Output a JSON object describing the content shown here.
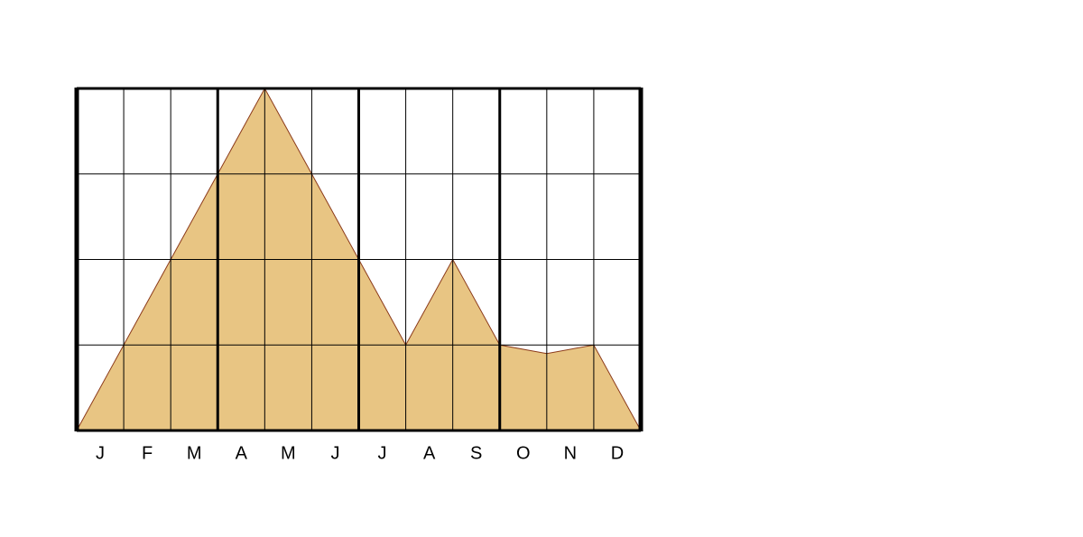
{
  "chart_data": {
    "type": "area",
    "categories": [
      "J",
      "F",
      "M",
      "A",
      "M",
      "J",
      "J",
      "A",
      "S",
      "O",
      "N",
      "D"
    ],
    "x": [
      0,
      1,
      2,
      3,
      4,
      5,
      6,
      7,
      8,
      9,
      10,
      11,
      12
    ],
    "values": [
      0,
      1,
      2,
      3,
      4,
      3,
      2,
      1,
      2,
      1,
      0.9,
      1,
      0
    ],
    "color": "#e8c583",
    "line_color": "#8b3a1a",
    "xlim": [
      0,
      12
    ],
    "xticks": [
      0,
      1,
      2,
      3,
      4,
      5,
      6,
      7,
      8,
      9,
      10,
      11,
      12
    ],
    "major_xticks": [
      0,
      3,
      6,
      9,
      12
    ],
    "ylim": [
      0,
      4
    ],
    "yticks": [
      0,
      1,
      2,
      3,
      4
    ],
    "grid": true
  }
}
